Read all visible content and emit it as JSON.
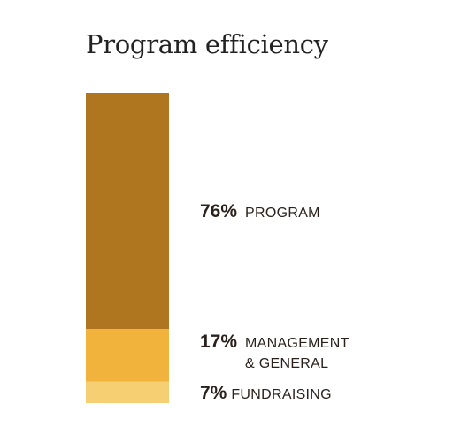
{
  "title": "Program efficiency",
  "chart_data": {
    "type": "bar",
    "orientation": "vertical-stacked-100",
    "title": "Program efficiency",
    "series": [
      {
        "name": "PROGRAM",
        "value": 76,
        "label": "76%",
        "color": "#b0751f",
        "lines": [
          "PROGRAM"
        ]
      },
      {
        "name": "MANAGEMENT & GENERAL",
        "value": 17,
        "label": "17%",
        "color": "#f1b33c",
        "lines": [
          "MANAGEMENT",
          "& GENERAL"
        ]
      },
      {
        "name": "FUNDRAISING",
        "value": 7,
        "label": "7%",
        "color": "#f6cf72",
        "lines": [
          "FUNDRAISING"
        ]
      }
    ],
    "ylim": [
      0,
      100
    ],
    "grid": false,
    "legend": "inline-right"
  }
}
